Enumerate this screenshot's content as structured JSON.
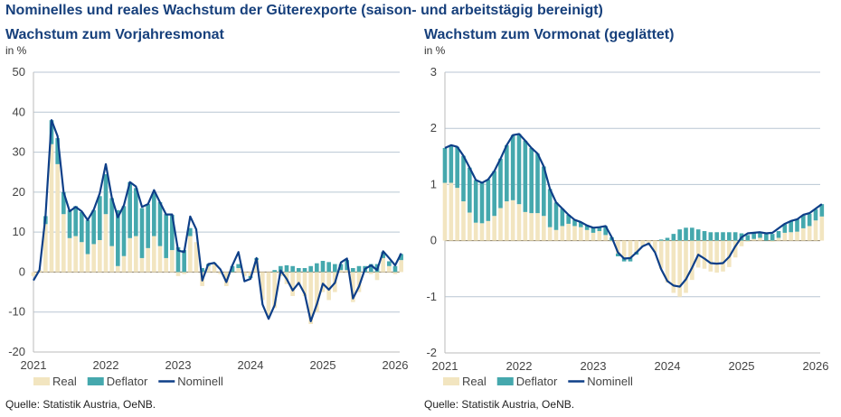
{
  "title": "Nominelles und reales Wachstum der Güterexporte (saison- und arbeitstägig bereinigt)",
  "colors": {
    "real": "#f2e5c0",
    "deflator": "#45a8ad",
    "nominal": "#0e3f88",
    "title": "#17407c"
  },
  "chart_data": [
    {
      "type": "bar",
      "subtitle": "Wachstum zum Vorjahresmonat",
      "ylabel": "in %",
      "source": "Quelle: Statistik Austria, OeNB.",
      "ylim": [
        -20,
        50
      ],
      "yticks": [
        -20,
        -10,
        0,
        10,
        20,
        30,
        40,
        50
      ],
      "xticks": [
        "2021",
        "2022",
        "2023",
        "2024",
        "2025",
        "2026"
      ],
      "grid": true,
      "legend": "bottom-left",
      "x_start": "2021-01",
      "frequency": "monthly",
      "series": [
        {
          "name": "Real",
          "type": "bar",
          "values": [
            -1,
            0.5,
            12,
            32,
            27,
            14.5,
            8.5,
            9,
            7.5,
            4.5,
            7,
            8,
            14.5,
            6.5,
            1.5,
            4,
            8.5,
            9,
            3.5,
            6,
            9,
            6.5,
            3.5,
            5.5,
            -1,
            -0.5,
            9,
            7.5,
            -3.5,
            1.5,
            2,
            -0.5,
            -3.5,
            0,
            1,
            -1,
            -1,
            3,
            -7,
            -11,
            -9,
            -1,
            -3,
            -6,
            -3,
            -6,
            -13,
            -10,
            -5,
            -7,
            -5,
            0.5,
            0.5,
            -7.5,
            -5,
            0,
            -0.5,
            -2,
            3.5,
            1.5,
            -0.5,
            3
          ]
        },
        {
          "name": "Deflator",
          "type": "bar",
          "values": [
            0,
            0,
            2,
            6,
            6.5,
            5.5,
            7,
            7.5,
            7.5,
            8.5,
            8.5,
            11,
            10,
            12,
            14,
            12.5,
            14,
            12,
            12.5,
            11,
            11,
            11,
            11,
            8.8,
            6.2,
            5.5,
            2,
            0,
            1,
            0.5,
            0.3,
            0,
            0,
            1.5,
            1,
            0,
            -0.5,
            0.5,
            0,
            0,
            0.5,
            1.5,
            1.7,
            1.5,
            1,
            1,
            1.5,
            2.2,
            2.8,
            2.5,
            2,
            1.5,
            2.5,
            1,
            1.5,
            1.5,
            2,
            2,
            1.5,
            1.2,
            1.5,
            1.5
          ]
        },
        {
          "name": "Nominell",
          "type": "line",
          "values": [
            -2.1,
            0.5,
            14,
            38,
            34,
            20,
            15.2,
            16.3,
            15.2,
            13,
            15.6,
            19.7,
            27,
            18.6,
            13.7,
            16.7,
            22.5,
            21.4,
            16.3,
            17,
            20.5,
            17.4,
            14.4,
            14.4,
            5.4,
            5,
            13.9,
            10.7,
            -2.1,
            2,
            2.3,
            0.7,
            -2.5,
            1.7,
            5,
            -2.3,
            -1.7,
            3.5,
            -8.1,
            -11.7,
            -8.3,
            0.4,
            -1.7,
            -4.6,
            -2.7,
            -5.5,
            -12.3,
            -8.1,
            -2.9,
            -4.4,
            -2.7,
            2.4,
            3.4,
            -6.6,
            -3.6,
            0.8,
            1.7,
            0.5,
            5.2,
            3.5,
            1.7,
            4.7
          ]
        }
      ]
    },
    {
      "type": "bar",
      "subtitle": "Wachstum zum Vormonat (geglättet)",
      "ylabel": "in %",
      "source": "Quelle: Statistik Austria, OeNB.",
      "ylim": [
        -2,
        3
      ],
      "yticks": [
        -2,
        -1,
        0,
        1,
        2,
        3
      ],
      "xticks": [
        "2021",
        "2022",
        "2023",
        "2024",
        "2025",
        "2026"
      ],
      "grid": true,
      "legend": "bottom-left",
      "x_start": "2021-01",
      "frequency": "monthly",
      "series": [
        {
          "name": "Real",
          "type": "bar",
          "values": [
            1.03,
            1.03,
            0.94,
            0.7,
            0.5,
            0.32,
            0.31,
            0.35,
            0.44,
            0.58,
            0.7,
            0.72,
            0.65,
            0.51,
            0.49,
            0.49,
            0.44,
            0.24,
            0.19,
            0.26,
            0.3,
            0.26,
            0.24,
            0.19,
            0.14,
            0.17,
            0.1,
            -0.02,
            -0.23,
            -0.3,
            -0.3,
            -0.2,
            -0.1,
            -0.05,
            -0.2,
            -0.5,
            -0.75,
            -0.93,
            -1.0,
            -0.93,
            -0.7,
            -0.48,
            -0.5,
            -0.55,
            -0.57,
            -0.55,
            -0.47,
            -0.3,
            -0.1,
            -0.02,
            0.03,
            0.05,
            0.0,
            -0.02,
            0.05,
            0.14,
            0.15,
            0.16,
            0.22,
            0.26,
            0.36,
            0.43
          ]
        },
        {
          "name": "Deflator",
          "type": "bar",
          "values": [
            0.62,
            0.67,
            0.73,
            0.81,
            0.8,
            0.76,
            0.72,
            0.74,
            0.8,
            0.88,
            1.0,
            1.16,
            1.25,
            1.27,
            1.16,
            1.06,
            0.88,
            0.68,
            0.49,
            0.31,
            0.16,
            0.11,
            0.09,
            0.08,
            0.09,
            0.07,
            0.16,
            0.06,
            -0.05,
            -0.07,
            -0.07,
            -0.05,
            0,
            0,
            0,
            0.02,
            0.05,
            0.12,
            0.2,
            0.23,
            0.23,
            0.2,
            0.17,
            0.15,
            0.15,
            0.15,
            0.15,
            0.15,
            0.13,
            0.1,
            0.1,
            0.08,
            0.12,
            0.12,
            0.12,
            0.15,
            0.2,
            0.22,
            0.23,
            0.22,
            0.2,
            0.22
          ]
        },
        {
          "name": "Nominell",
          "type": "line",
          "values": [
            1.65,
            1.7,
            1.67,
            1.51,
            1.3,
            1.08,
            1.03,
            1.09,
            1.24,
            1.46,
            1.7,
            1.88,
            1.9,
            1.78,
            1.65,
            1.55,
            1.32,
            0.92,
            0.68,
            0.57,
            0.46,
            0.37,
            0.33,
            0.27,
            0.23,
            0.24,
            0.26,
            0.06,
            -0.21,
            -0.32,
            -0.31,
            -0.21,
            -0.1,
            -0.05,
            -0.21,
            -0.51,
            -0.72,
            -0.8,
            -0.82,
            -0.69,
            -0.48,
            -0.25,
            -0.32,
            -0.4,
            -0.41,
            -0.4,
            -0.29,
            -0.1,
            0.06,
            0.13,
            0.14,
            0.15,
            0.13,
            0.14,
            0.22,
            0.3,
            0.35,
            0.38,
            0.46,
            0.49,
            0.57,
            0.65
          ]
        }
      ]
    }
  ]
}
